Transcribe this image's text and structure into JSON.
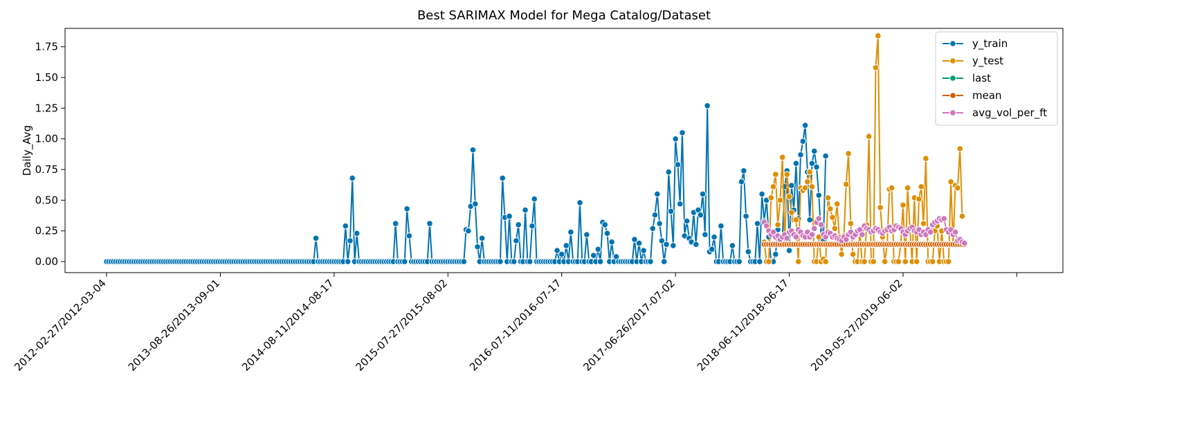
{
  "chart_data": {
    "type": "line",
    "title": "Best SARIMAX Model for Mega Catalog/Dataset",
    "xlabel": "",
    "ylabel": "Daily_Avg",
    "x_unit": "week",
    "x_range": [
      0,
      402
    ],
    "ylim": [
      -0.09,
      1.9
    ],
    "y_ticks": [
      0.0,
      0.25,
      0.5,
      0.75,
      1.0,
      1.25,
      1.5,
      1.75
    ],
    "y_tick_labels": [
      "0.00",
      "0.25",
      "0.50",
      "0.75",
      "1.00",
      "1.25",
      "1.50",
      "1.75"
    ],
    "x_ticks": [
      0,
      50,
      100,
      150,
      200,
      250,
      300,
      350,
      400
    ],
    "x_tick_labels": [
      "2012-02-27/2012-03-04",
      "2013-08-26/2013-09-01",
      "2014-08-11/2014-08-17",
      "2015-07-27/2015-08-02",
      "2016-07-11/2016-07-17",
      "2017-06-26/2017-07-02",
      "2018-06-11/2018-06-17",
      "2019-05-27/2019-06-02",
      ""
    ],
    "grid": false,
    "legend_position": "top-right",
    "series": [
      {
        "name": "y_train",
        "color": "#0173b2",
        "x_start": 0,
        "values": [
          0,
          0,
          0,
          0,
          0,
          0,
          0,
          0,
          0,
          0,
          0,
          0,
          0,
          0,
          0,
          0,
          0,
          0,
          0,
          0,
          0,
          0,
          0,
          0,
          0,
          0,
          0,
          0,
          0,
          0,
          0,
          0,
          0,
          0,
          0,
          0,
          0,
          0,
          0,
          0,
          0,
          0,
          0,
          0,
          0,
          0,
          0,
          0,
          0,
          0,
          0,
          0,
          0,
          0,
          0,
          0,
          0,
          0,
          0,
          0,
          0,
          0,
          0,
          0,
          0,
          0,
          0,
          0,
          0,
          0,
          0,
          0,
          0,
          0,
          0,
          0,
          0,
          0,
          0,
          0,
          0,
          0,
          0,
          0,
          0,
          0,
          0,
          0,
          0,
          0,
          0,
          0,
          0.19,
          0,
          0,
          0,
          0,
          0,
          0,
          0,
          0,
          0,
          0,
          0,
          0,
          0.29,
          0,
          0.17,
          0.68,
          0,
          0.23,
          0,
          0,
          0,
          0,
          0,
          0,
          0,
          0,
          0,
          0,
          0,
          0,
          0,
          0,
          0,
          0,
          0.31,
          0,
          0,
          0,
          0,
          0.43,
          0.21,
          0,
          0,
          0,
          0,
          0,
          0,
          0,
          0,
          0.31,
          0,
          0,
          0,
          0,
          0,
          0,
          0,
          0,
          0,
          0,
          0,
          0,
          0,
          0,
          0,
          0.26,
          0.25,
          0.45,
          0.91,
          0.47,
          0.12,
          0,
          0.19,
          0,
          0,
          0,
          0,
          0,
          0,
          0,
          0,
          0.68,
          0.36,
          0,
          0.37,
          0,
          0,
          0.17,
          0.3,
          0,
          0,
          0.42,
          0,
          0,
          0.29,
          0.51,
          0,
          0,
          0,
          0,
          0,
          0,
          0,
          0,
          0,
          0.09,
          0,
          0.06,
          0,
          0.13,
          0,
          0.24,
          0,
          0,
          0,
          0.48,
          0,
          0,
          0.22,
          0,
          0,
          0.05,
          0,
          0.1,
          0,
          0.32,
          0.3,
          0.23,
          0,
          0.16,
          0,
          0.04,
          0,
          0,
          0,
          0,
          0,
          0,
          0,
          0.18,
          0,
          0.15,
          0,
          0.09,
          0,
          0,
          0,
          0.27,
          0.38,
          0.55,
          0.31,
          0.17,
          0,
          0.14,
          0.73,
          0.41,
          0.13,
          1,
          0.79,
          0.47,
          1.05,
          0.21,
          0.33,
          0.19,
          0.16,
          0.4,
          0.14,
          0.42,
          0.38,
          0.55,
          0.22,
          1.27,
          0.08,
          0.1,
          0.2,
          0,
          0,
          0.29,
          0,
          0,
          0,
          0,
          0.13,
          0,
          0,
          0,
          0.65,
          0.74,
          0.37,
          0.08,
          0,
          0,
          0,
          0.31,
          0,
          0.55,
          0.33,
          0.5,
          0.2,
          0,
          0,
          0.06,
          0.26,
          0.17,
          0.2,
          0.61,
          0.74,
          0.09,
          0.62,
          0.42,
          0.8,
          0.35,
          0.87,
          0.98,
          1.11,
          0.73,
          0.34,
          0.8,
          0.9,
          0.77,
          0.54,
          0.21,
          0.17,
          0.86
        ]
      },
      {
        "name": "y_test",
        "color": "#de8f05",
        "x_start": 289,
        "values": [
          0.16,
          0,
          0,
          0.52,
          0.61,
          0.71,
          0.3,
          0.5,
          0.85,
          0.14,
          0.71,
          0.53,
          0.4,
          0.34,
          0.34,
          0,
          0.6,
          0.58,
          0.6,
          0.65,
          0.73,
          0.61,
          0,
          0,
          0.2,
          0,
          0.02,
          0,
          0.52,
          0.43,
          0.36,
          0.27,
          0.47,
          0.2,
          0.06,
          0.21,
          0.63,
          0.88,
          0.31,
          0.06,
          0,
          0,
          0.25,
          0,
          0,
          0.3,
          1.02,
          0,
          0,
          1.58,
          1.84,
          0.44,
          0.2,
          0,
          0.14,
          0.59,
          0.6,
          0,
          0,
          0,
          0.14,
          0.46,
          0,
          0.6,
          0.27,
          0,
          0.52,
          0,
          0.51,
          0.61,
          0.31,
          0.84,
          0,
          0,
          0,
          0.25,
          0.29,
          0,
          0.25,
          0,
          0,
          0,
          0.65,
          0.14,
          0.62,
          0.6,
          0.92,
          0.37
        ]
      },
      {
        "name": "last",
        "color": "#029e73",
        "x_start": 289,
        "constant": 0.14,
        "count": 89
      },
      {
        "name": "mean",
        "color": "#d55e00",
        "x_start": 289,
        "constant": 0.14,
        "count": 89
      },
      {
        "name": "avg_vol_per_ft",
        "color": "#cc78bc",
        "x_start": 289,
        "values": [
          0.32,
          0.29,
          0.25,
          0.22,
          0.24,
          0.2,
          0.21,
          0.18,
          0.2,
          0.22,
          0.19,
          0.24,
          0.25,
          0.22,
          0.2,
          0.26,
          0.24,
          0.21,
          0.2,
          0.24,
          0.2,
          0.22,
          0.27,
          0.32,
          0.35,
          0.3,
          0.22,
          0.2,
          0.24,
          0.23,
          0.2,
          0.21,
          0.19,
          0.18,
          0.17,
          0.2,
          0.18,
          0.22,
          0.24,
          0.2,
          0.22,
          0.25,
          0.26,
          0.22,
          0.29,
          0.27,
          0.26,
          0.24,
          0.25,
          0.27,
          0.26,
          0.24,
          0.23,
          0.25,
          0.26,
          0.28,
          0.25,
          0.26,
          0.29,
          0.28,
          0.27,
          0.24,
          0.22,
          0.25,
          0.27,
          0.28,
          0.25,
          0.24,
          0.26,
          0.22,
          0.24,
          0.22,
          0.26,
          0.24,
          0.3,
          0.32,
          0.33,
          0.35,
          0.34,
          0.35,
          0.26,
          0.24,
          0.26,
          0.22,
          0.24,
          0.17,
          0.18,
          0.16,
          0.15
        ]
      }
    ]
  }
}
